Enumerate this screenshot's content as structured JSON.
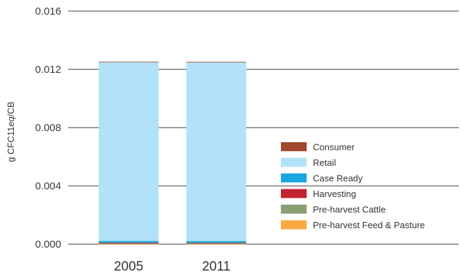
{
  "chart_data": {
    "type": "bar",
    "stacked": true,
    "categories": [
      "2005",
      "2011"
    ],
    "ylabel_prefix": "g CFC11",
    "ylabel_italic": "eq",
    "ylabel_suffix": "/CB",
    "ylim": [
      0,
      0.016
    ],
    "yticks": [
      "0.000",
      "0.004",
      "0.008",
      "0.012",
      "0.016"
    ],
    "ytick_values": [
      0,
      0.004,
      0.008,
      0.012,
      0.016
    ],
    "grid": "horizontal",
    "legend_position": "right",
    "series": [
      {
        "name": "Pre-harvest Feed & Pasture",
        "color": "#f9a940",
        "values": [
          2e-05,
          2e-05
        ]
      },
      {
        "name": "Pre-harvest Cattle",
        "color": "#8aa072",
        "values": [
          3e-05,
          3e-05
        ]
      },
      {
        "name": "Harvesting",
        "color": "#c0222f",
        "values": [
          5e-05,
          4e-05
        ]
      },
      {
        "name": "Case Ready",
        "color": "#1aa8e0",
        "values": [
          0.00012,
          0.00012
        ]
      },
      {
        "name": "Retail",
        "color": "#b2e2f7",
        "values": [
          0.0123,
          0.0123
        ]
      },
      {
        "name": "Consumer",
        "color": "#a0492f",
        "values": [
          1e-05,
          1e-05
        ]
      }
    ],
    "legend_order": [
      "Consumer",
      "Retail",
      "Case Ready",
      "Harvesting",
      "Pre-harvest Cattle",
      "Pre-harvest Feed & Pasture"
    ]
  }
}
